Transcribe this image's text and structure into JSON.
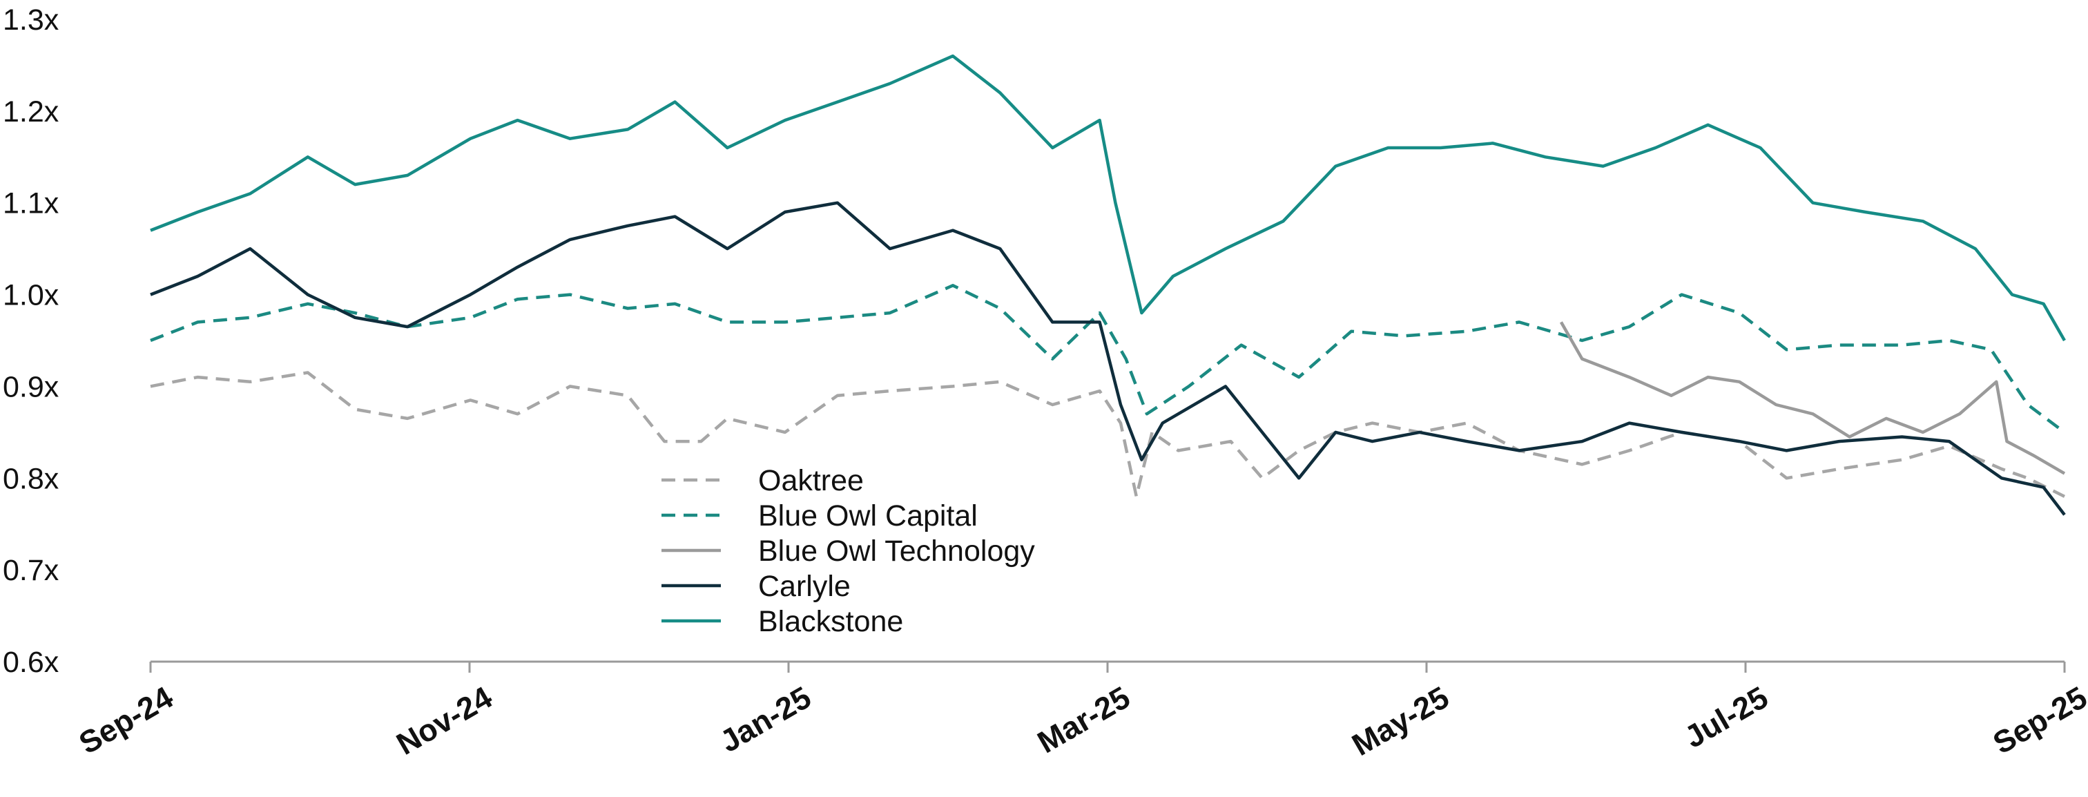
{
  "chart_data": {
    "type": "line",
    "title": "",
    "xlabel": "",
    "ylabel": "",
    "x_ticks": [
      "Sep-24",
      "Nov-24",
      "Jan-25",
      "Mar-25",
      "May-25",
      "Jul-25",
      "Sep-25"
    ],
    "x_range": [
      "2024-09-01",
      "2025-09-01"
    ],
    "y_ticks": [
      "0.6x",
      "0.7x",
      "0.8x",
      "0.9x",
      "1.0x",
      "1.1x",
      "1.2x",
      "1.3x"
    ],
    "ylim": [
      0.6,
      1.3
    ],
    "grid": false,
    "legend_position": "center-left",
    "series": [
      {
        "name": "Oaktree",
        "color": "#a6a6a6",
        "dash": "dashed",
        "points": [
          [
            "2024-09-01",
            0.9
          ],
          [
            "2024-09-10",
            0.91
          ],
          [
            "2024-09-20",
            0.905
          ],
          [
            "2024-10-01",
            0.915
          ],
          [
            "2024-10-10",
            0.875
          ],
          [
            "2024-10-20",
            0.865
          ],
          [
            "2024-11-01",
            0.885
          ],
          [
            "2024-11-10",
            0.87
          ],
          [
            "2024-11-20",
            0.9
          ],
          [
            "2024-12-01",
            0.89
          ],
          [
            "2024-12-08",
            0.84
          ],
          [
            "2024-12-15",
            0.84
          ],
          [
            "2024-12-20",
            0.865
          ],
          [
            "2024-12-31",
            0.85
          ],
          [
            "2025-01-10",
            0.89
          ],
          [
            "2025-01-20",
            0.895
          ],
          [
            "2025-02-01",
            0.9
          ],
          [
            "2025-02-10",
            0.905
          ],
          [
            "2025-02-20",
            0.88
          ],
          [
            "2025-03-01",
            0.895
          ],
          [
            "2025-03-05",
            0.86
          ],
          [
            "2025-03-08",
            0.78
          ],
          [
            "2025-03-11",
            0.85
          ],
          [
            "2025-03-16",
            0.83
          ],
          [
            "2025-03-26",
            0.84
          ],
          [
            "2025-04-01",
            0.8
          ],
          [
            "2025-04-08",
            0.83
          ],
          [
            "2025-04-15",
            0.85
          ],
          [
            "2025-04-22",
            0.86
          ],
          [
            "2025-05-01",
            0.85
          ],
          [
            "2025-05-10",
            0.86
          ],
          [
            "2025-05-20",
            0.83
          ],
          [
            "2025-06-01",
            0.815
          ],
          [
            "2025-06-10",
            0.83
          ],
          [
            "2025-06-20",
            0.85
          ],
          [
            "2025-07-01",
            0.84
          ],
          [
            "2025-07-10",
            0.8
          ],
          [
            "2025-07-20",
            0.81
          ],
          [
            "2025-08-01",
            0.82
          ],
          [
            "2025-08-10",
            0.835
          ],
          [
            "2025-08-20",
            0.81
          ],
          [
            "2025-08-25",
            0.8
          ],
          [
            "2025-09-01",
            0.78
          ]
        ]
      },
      {
        "name": "Blue Owl Capital",
        "color": "#1b8a82",
        "dash": "dashed",
        "points": [
          [
            "2024-09-01",
            0.95
          ],
          [
            "2024-09-10",
            0.97
          ],
          [
            "2024-09-20",
            0.975
          ],
          [
            "2024-10-01",
            0.99
          ],
          [
            "2024-10-10",
            0.98
          ],
          [
            "2024-10-20",
            0.965
          ],
          [
            "2024-11-01",
            0.975
          ],
          [
            "2024-11-10",
            0.995
          ],
          [
            "2024-11-20",
            1.0
          ],
          [
            "2024-12-01",
            0.985
          ],
          [
            "2024-12-10",
            0.99
          ],
          [
            "2024-12-20",
            0.97
          ],
          [
            "2024-12-31",
            0.97
          ],
          [
            "2025-01-10",
            0.975
          ],
          [
            "2025-01-20",
            0.98
          ],
          [
            "2025-02-01",
            1.01
          ],
          [
            "2025-02-10",
            0.985
          ],
          [
            "2025-02-20",
            0.93
          ],
          [
            "2025-03-01",
            0.98
          ],
          [
            "2025-03-06",
            0.93
          ],
          [
            "2025-03-10",
            0.87
          ],
          [
            "2025-03-18",
            0.9
          ],
          [
            "2025-03-28",
            0.945
          ],
          [
            "2025-04-08",
            0.91
          ],
          [
            "2025-04-18",
            0.96
          ],
          [
            "2025-04-28",
            0.955
          ],
          [
            "2025-05-10",
            0.96
          ],
          [
            "2025-05-20",
            0.97
          ],
          [
            "2025-06-01",
            0.95
          ],
          [
            "2025-06-10",
            0.965
          ],
          [
            "2025-06-20",
            1.0
          ],
          [
            "2025-07-01",
            0.98
          ],
          [
            "2025-07-10",
            0.94
          ],
          [
            "2025-07-20",
            0.945
          ],
          [
            "2025-08-01",
            0.945
          ],
          [
            "2025-08-10",
            0.95
          ],
          [
            "2025-08-18",
            0.94
          ],
          [
            "2025-08-25",
            0.88
          ],
          [
            "2025-09-01",
            0.85
          ]
        ]
      },
      {
        "name": "Blue Owl Technology",
        "color": "#9a9a9a",
        "dash": "solid",
        "points": [
          [
            "2025-05-28",
            0.97
          ],
          [
            "2025-06-01",
            0.93
          ],
          [
            "2025-06-10",
            0.91
          ],
          [
            "2025-06-18",
            0.89
          ],
          [
            "2025-06-25",
            0.91
          ],
          [
            "2025-07-01",
            0.905
          ],
          [
            "2025-07-08",
            0.88
          ],
          [
            "2025-07-15",
            0.87
          ],
          [
            "2025-07-22",
            0.845
          ],
          [
            "2025-07-29",
            0.865
          ],
          [
            "2025-08-05",
            0.85
          ],
          [
            "2025-08-12",
            0.87
          ],
          [
            "2025-08-19",
            0.905
          ],
          [
            "2025-08-21",
            0.84
          ],
          [
            "2025-08-26",
            0.825
          ],
          [
            "2025-09-01",
            0.805
          ]
        ]
      },
      {
        "name": "Carlyle",
        "color": "#0f2d3c",
        "dash": "solid",
        "points": [
          [
            "2024-09-01",
            1.0
          ],
          [
            "2024-09-10",
            1.02
          ],
          [
            "2024-09-20",
            1.05
          ],
          [
            "2024-10-01",
            1.0
          ],
          [
            "2024-10-10",
            0.975
          ],
          [
            "2024-10-20",
            0.965
          ],
          [
            "2024-11-01",
            1.0
          ],
          [
            "2024-11-10",
            1.03
          ],
          [
            "2024-11-20",
            1.06
          ],
          [
            "2024-12-01",
            1.075
          ],
          [
            "2024-12-10",
            1.085
          ],
          [
            "2024-12-20",
            1.05
          ],
          [
            "2024-12-31",
            1.09
          ],
          [
            "2025-01-10",
            1.1
          ],
          [
            "2025-01-20",
            1.05
          ],
          [
            "2025-02-01",
            1.07
          ],
          [
            "2025-02-10",
            1.05
          ],
          [
            "2025-02-20",
            0.97
          ],
          [
            "2025-03-01",
            0.97
          ],
          [
            "2025-03-05",
            0.88
          ],
          [
            "2025-03-09",
            0.82
          ],
          [
            "2025-03-13",
            0.86
          ],
          [
            "2025-03-25",
            0.9
          ],
          [
            "2025-04-01",
            0.85
          ],
          [
            "2025-04-08",
            0.8
          ],
          [
            "2025-04-15",
            0.85
          ],
          [
            "2025-04-22",
            0.84
          ],
          [
            "2025-05-01",
            0.85
          ],
          [
            "2025-05-10",
            0.84
          ],
          [
            "2025-05-20",
            0.83
          ],
          [
            "2025-06-01",
            0.84
          ],
          [
            "2025-06-10",
            0.86
          ],
          [
            "2025-06-20",
            0.85
          ],
          [
            "2025-07-01",
            0.84
          ],
          [
            "2025-07-10",
            0.83
          ],
          [
            "2025-07-20",
            0.84
          ],
          [
            "2025-08-01",
            0.845
          ],
          [
            "2025-08-10",
            0.84
          ],
          [
            "2025-08-20",
            0.8
          ],
          [
            "2025-08-28",
            0.79
          ],
          [
            "2025-09-01",
            0.76
          ]
        ]
      },
      {
        "name": "Blackstone",
        "color": "#168c86",
        "dash": "solid",
        "points": [
          [
            "2024-09-01",
            1.07
          ],
          [
            "2024-09-10",
            1.09
          ],
          [
            "2024-09-20",
            1.11
          ],
          [
            "2024-10-01",
            1.15
          ],
          [
            "2024-10-10",
            1.12
          ],
          [
            "2024-10-20",
            1.13
          ],
          [
            "2024-11-01",
            1.17
          ],
          [
            "2024-11-10",
            1.19
          ],
          [
            "2024-11-20",
            1.17
          ],
          [
            "2024-12-01",
            1.18
          ],
          [
            "2024-12-10",
            1.21
          ],
          [
            "2024-12-20",
            1.16
          ],
          [
            "2024-12-31",
            1.19
          ],
          [
            "2025-01-10",
            1.21
          ],
          [
            "2025-01-20",
            1.23
          ],
          [
            "2025-02-01",
            1.26
          ],
          [
            "2025-02-10",
            1.22
          ],
          [
            "2025-02-20",
            1.16
          ],
          [
            "2025-03-01",
            1.19
          ],
          [
            "2025-03-04",
            1.1
          ],
          [
            "2025-03-09",
            0.98
          ],
          [
            "2025-03-15",
            1.02
          ],
          [
            "2025-03-25",
            1.05
          ],
          [
            "2025-04-05",
            1.08
          ],
          [
            "2025-04-15",
            1.14
          ],
          [
            "2025-04-25",
            1.16
          ],
          [
            "2025-05-05",
            1.16
          ],
          [
            "2025-05-15",
            1.165
          ],
          [
            "2025-05-25",
            1.15
          ],
          [
            "2025-06-05",
            1.14
          ],
          [
            "2025-06-15",
            1.16
          ],
          [
            "2025-06-25",
            1.185
          ],
          [
            "2025-07-05",
            1.16
          ],
          [
            "2025-07-15",
            1.1
          ],
          [
            "2025-07-25",
            1.09
          ],
          [
            "2025-08-05",
            1.08
          ],
          [
            "2025-08-15",
            1.05
          ],
          [
            "2025-08-22",
            1.0
          ],
          [
            "2025-08-28",
            0.99
          ],
          [
            "2025-09-01",
            0.95
          ]
        ]
      }
    ]
  }
}
